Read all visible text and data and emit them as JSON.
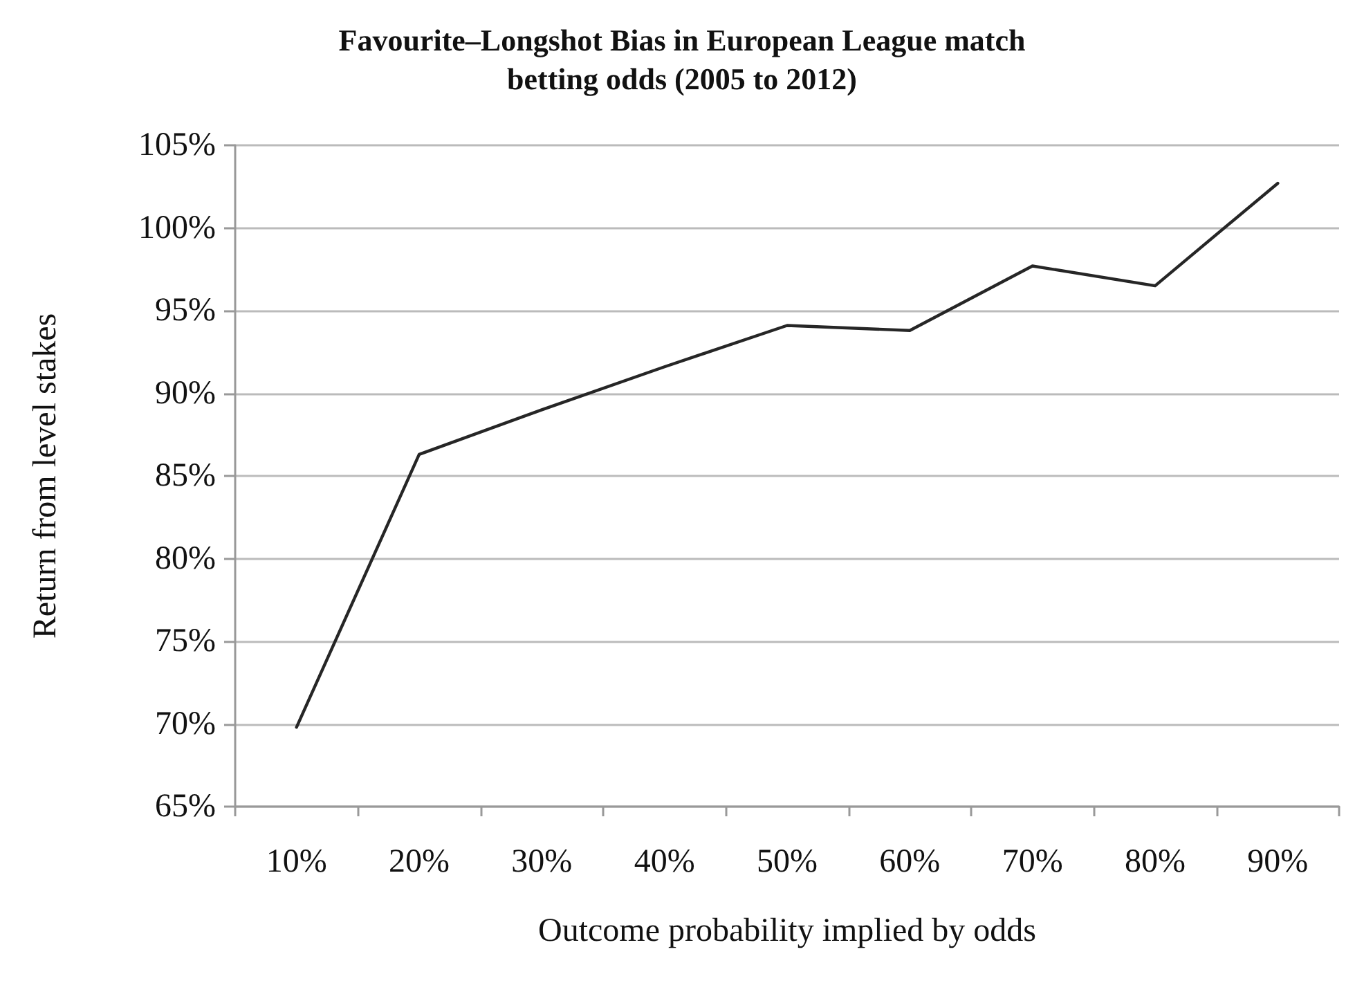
{
  "chart_data": {
    "type": "line",
    "title": "Favourite–Longshot Bias in European League match\nbetting odds (2005 to 2012)",
    "xlabel": "Outcome probability implied by odds",
    "ylabel": "Return from level stakes",
    "categories": [
      "10%",
      "20%",
      "30%",
      "40%",
      "50%",
      "60%",
      "70%",
      "80%",
      "90%"
    ],
    "series": [
      {
        "color": "#262626",
        "values": [
          69.8,
          86.3,
          89.0,
          91.6,
          94.1,
          93.8,
          97.7,
          96.5,
          102.7
        ]
      }
    ],
    "ylim": [
      65,
      105
    ],
    "yticks": [
      {
        "value": 65,
        "label": "65%"
      },
      {
        "value": 70,
        "label": "70%"
      },
      {
        "value": 75,
        "label": "75%"
      },
      {
        "value": 80,
        "label": "80%"
      },
      {
        "value": 85,
        "label": "85%"
      },
      {
        "value": 90,
        "label": "90%"
      },
      {
        "value": 95,
        "label": "95%"
      },
      {
        "value": 100,
        "label": "100%"
      },
      {
        "value": 105,
        "label": "105%"
      }
    ],
    "grid": "y",
    "marker": "none",
    "line_style": "solid"
  }
}
